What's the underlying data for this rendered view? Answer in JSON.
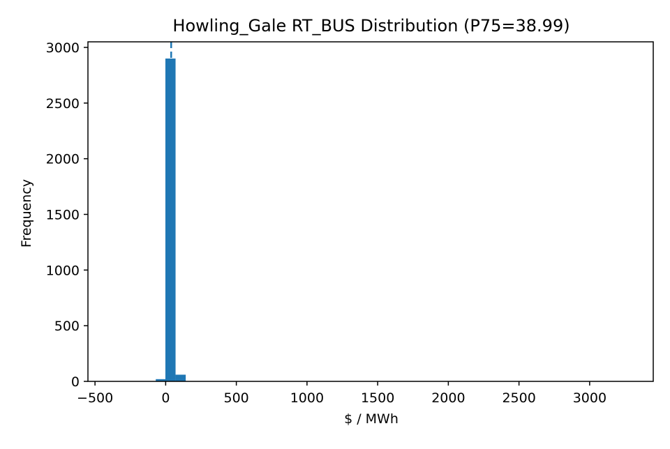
{
  "chart_data": {
    "type": "bar",
    "title": "Howling_Gale RT_BUS Distribution (P75=38.99)",
    "xlabel": "$ / MWh",
    "ylabel": "Frequency",
    "xlim": [
      -550,
      3450
    ],
    "ylim": [
      0,
      3050
    ],
    "xticks": [
      -500,
      0,
      500,
      1000,
      1500,
      2000,
      2500,
      3000
    ],
    "yticks": [
      0,
      500,
      1000,
      1500,
      2000,
      2500,
      3000
    ],
    "bin_width": 72,
    "bins": [
      {
        "x0": -502,
        "x1": -430,
        "count": 1
      },
      {
        "x0": -70,
        "x1": -2,
        "count": 20
      },
      {
        "x0": -2,
        "x1": 70,
        "count": 2900
      },
      {
        "x0": 70,
        "x1": 142,
        "count": 60
      },
      {
        "x0": 142,
        "x1": 214,
        "count": 2
      },
      {
        "x0": 3180,
        "x1": 3252,
        "count": 1
      }
    ],
    "reference_line": {
      "label": "P75",
      "value": 38.99,
      "style": "dashed"
    },
    "grid": false,
    "legend": "none",
    "bar_color": "#1f77b4"
  }
}
